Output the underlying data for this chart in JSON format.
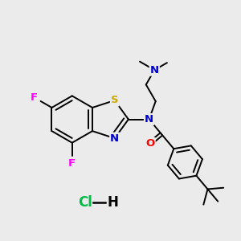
{
  "background_color": "#ebebeb",
  "atom_colors": {
    "N": "#0000cc",
    "O": "#ff0000",
    "S": "#ccaa00",
    "F": "#ff00ff",
    "C": "#000000",
    "Cl": "#00bb44"
  },
  "bond_color": "#000000",
  "bond_width": 1.4,
  "figsize": [
    3.0,
    3.0
  ],
  "dpi": 100
}
